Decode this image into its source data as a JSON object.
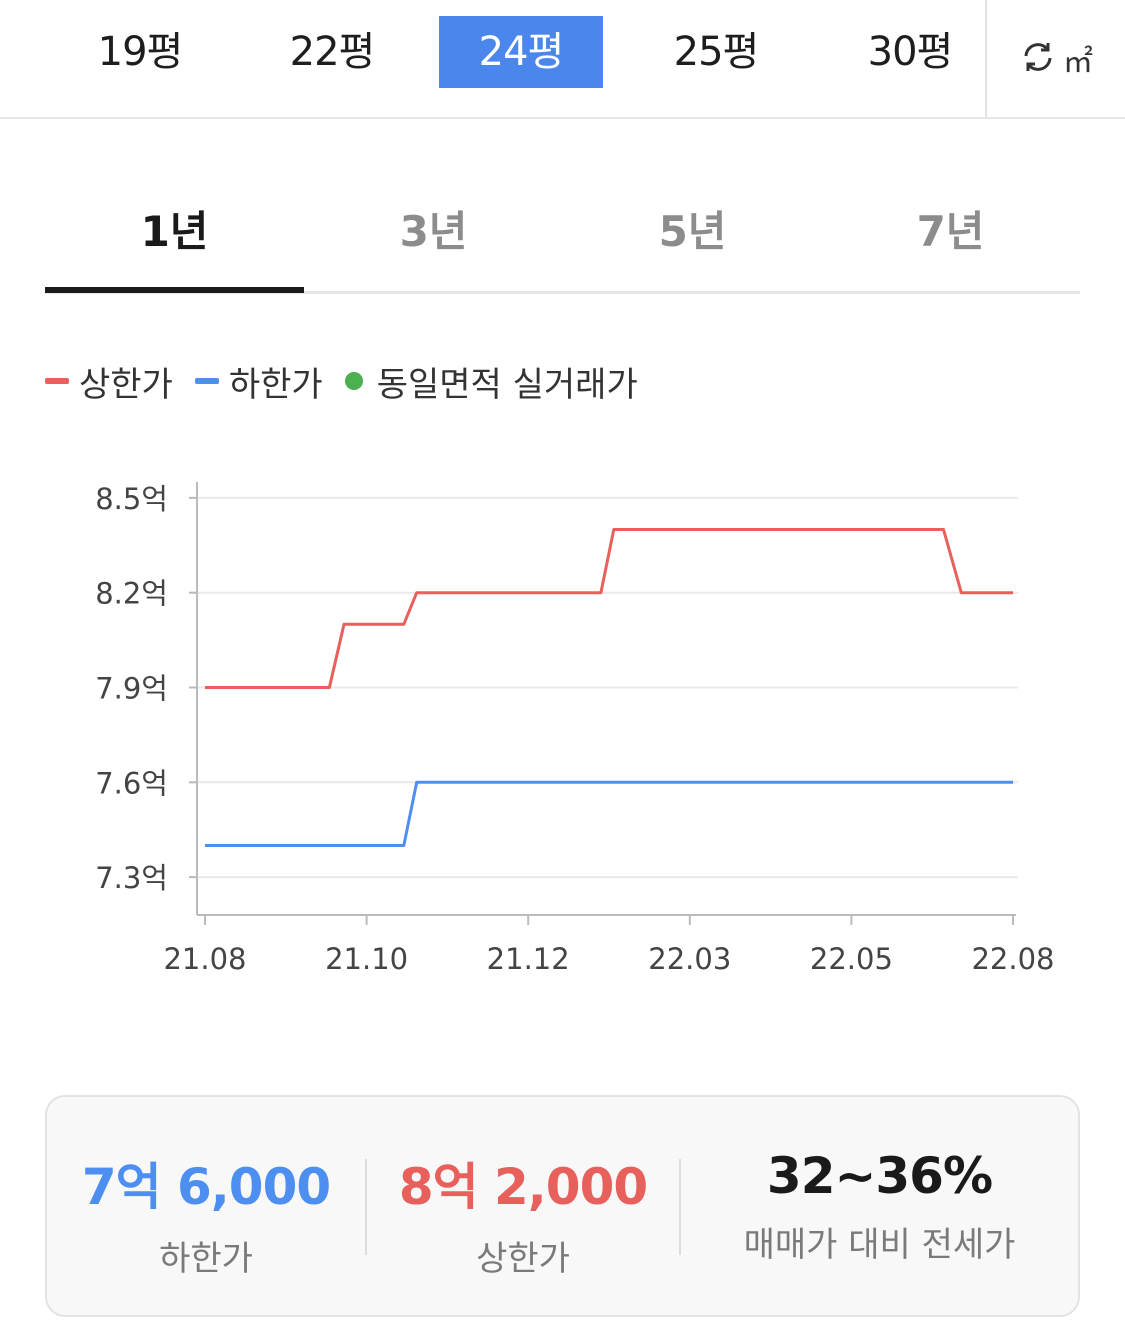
{
  "area_tabs": [
    {
      "label": "19평",
      "active": false
    },
    {
      "label": "22평",
      "active": false
    },
    {
      "label": "24평",
      "active": true
    },
    {
      "label": "25평",
      "active": false
    },
    {
      "label": "30평",
      "active": false
    }
  ],
  "unit_toggle": {
    "icon": "refresh-icon",
    "label": "㎡"
  },
  "period_tabs": [
    {
      "label": "1년",
      "active": true
    },
    {
      "label": "3년",
      "active": false
    },
    {
      "label": "5년",
      "active": false
    },
    {
      "label": "7년",
      "active": false
    }
  ],
  "legend": [
    {
      "label": "상한가",
      "marker": "dash",
      "color": "#e8605c"
    },
    {
      "label": "하한가",
      "marker": "dash",
      "color": "#4d8ff0"
    },
    {
      "label": "동일면적 실거래가",
      "marker": "dot",
      "color": "#4caf50"
    }
  ],
  "chart_data": {
    "type": "line",
    "x_ticks": [
      "21.08",
      "21.10",
      "21.12",
      "22.03",
      "22.05",
      "22.08"
    ],
    "y_ticks": [
      {
        "value": 8.5,
        "label": "8.5억"
      },
      {
        "value": 8.2,
        "label": "8.2억"
      },
      {
        "value": 7.9,
        "label": "7.9억"
      },
      {
        "value": 7.6,
        "label": "7.6억"
      },
      {
        "value": 7.3,
        "label": "7.3억"
      }
    ],
    "ylim": [
      7.18,
      8.62
    ],
    "xlim": [
      0,
      5
    ],
    "grid": true,
    "series": [
      {
        "name": "상한가",
        "color": "#e8605c",
        "points": [
          [
            0,
            7.9
          ],
          [
            0.77,
            7.9
          ],
          [
            0.86,
            8.1
          ],
          [
            1.23,
            8.1
          ],
          [
            1.31,
            8.2
          ],
          [
            2.45,
            8.2
          ],
          [
            2.53,
            8.4
          ],
          [
            4.57,
            8.4
          ],
          [
            4.68,
            8.2
          ],
          [
            5,
            8.2
          ]
        ]
      },
      {
        "name": "하한가",
        "color": "#4d8ff0",
        "points": [
          [
            0,
            7.4
          ],
          [
            1.23,
            7.4
          ],
          [
            1.31,
            7.6
          ],
          [
            5,
            7.6
          ]
        ]
      }
    ]
  },
  "summary": [
    {
      "value": "7억 6,000",
      "label": "하한가",
      "color": "#4d8ff0"
    },
    {
      "value": "8억 2,000",
      "label": "상한가",
      "color": "#e8605c"
    },
    {
      "value": "32~36%",
      "label": "매매가 대비 전세가",
      "color": "#1a1a1a"
    }
  ]
}
